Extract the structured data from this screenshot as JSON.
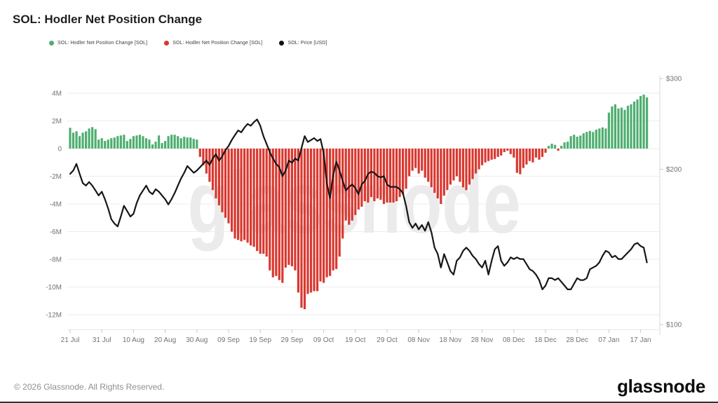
{
  "header": {
    "title": "SOL: Hodler Net Position Change"
  },
  "legend": [
    {
      "label": "SOL: Hodler Net Position Change [SOL]",
      "color": "#4fae70"
    },
    {
      "label": "SOL: Hodler Net Position Change [SOL]",
      "color": "#d93830"
    },
    {
      "label": "SOL: Price [USD]",
      "color": "#111111"
    }
  ],
  "watermark": "glassnode",
  "footer": {
    "copyright": "© 2026 Glassnode. All Rights Reserved.",
    "logo": "glassnode"
  },
  "chart_data": {
    "type": "bar+line",
    "title": "SOL: Hodler Net Position Change",
    "date_range": {
      "start": "21 Jul",
      "end": "19 Jan"
    },
    "x_ticks": {
      "labels": [
        "21 Jul",
        "31 Jul",
        "10 Aug",
        "20 Aug",
        "30 Aug",
        "09 Sep",
        "19 Sep",
        "29 Sep",
        "09 Oct",
        "19 Oct",
        "29 Oct",
        "08 Nov",
        "18 Nov",
        "28 Nov",
        "08 Dec",
        "18 Dec",
        "28 Dec",
        "07 Jan",
        "17 Jan"
      ],
      "day_indices": [
        0,
        10,
        20,
        30,
        40,
        50,
        60,
        70,
        80,
        90,
        100,
        110,
        120,
        130,
        140,
        150,
        160,
        170,
        180
      ]
    },
    "left_axis": {
      "unit": "SOL (millions)",
      "tick_labels": [
        "4M",
        "2M",
        "0",
        "-2M",
        "-4M",
        "-6M",
        "-8M",
        "-10M",
        "-12M"
      ],
      "tick_values": [
        4,
        2,
        0,
        -2,
        -4,
        -6,
        -8,
        -10,
        -12
      ],
      "range": [
        -13,
        5
      ]
    },
    "right_axis": {
      "unit": "USD",
      "scale": "log",
      "tick_labels": [
        "$300",
        "$200",
        "$100"
      ],
      "tick_values": [
        300,
        200,
        100
      ],
      "range": [
        100,
        300
      ]
    },
    "grid": true,
    "legend_position": "top-left",
    "series": [
      {
        "name": "SOL: Hodler Net Position Change [SOL]",
        "type": "bar",
        "axis": "left",
        "unit": "M SOL/day",
        "positive_color": "#4fae70",
        "negative_color": "#d93830",
        "values": [
          1.5,
          1.15,
          1.25,
          0.9,
          1.15,
          1.25,
          1.45,
          1.55,
          1.4,
          0.65,
          0.75,
          0.55,
          0.65,
          0.75,
          0.8,
          0.9,
          0.95,
          1.0,
          0.55,
          0.7,
          0.9,
          0.95,
          1.0,
          0.9,
          0.75,
          0.65,
          0.3,
          0.5,
          0.95,
          0.4,
          0.55,
          0.9,
          1.0,
          1.0,
          0.9,
          0.75,
          0.85,
          0.8,
          0.8,
          0.7,
          0.65,
          -0.6,
          -1.2,
          -1.8,
          -2.4,
          -3.0,
          -3.6,
          -4.1,
          -4.6,
          -5.0,
          -5.4,
          -6.0,
          -6.5,
          -6.6,
          -6.7,
          -6.6,
          -6.8,
          -7.0,
          -7.1,
          -7.4,
          -7.6,
          -7.6,
          -7.8,
          -8.8,
          -9.3,
          -9.2,
          -9.5,
          -9.7,
          -8.6,
          -8.4,
          -8.5,
          -8.8,
          -10.4,
          -11.5,
          -11.6,
          -10.5,
          -10.4,
          -10.3,
          -10.3,
          -9.6,
          -9.7,
          -9.3,
          -9.2,
          -8.8,
          -8.7,
          -7.8,
          -6.5,
          -5.2,
          -5.5,
          -5.2,
          -4.8,
          -4.4,
          -4.2,
          -3.8,
          -3.9,
          -3.5,
          -3.8,
          -3.6,
          -3.7,
          -4.0,
          -3.9,
          -3.9,
          -3.9,
          -3.8,
          -3.5,
          -3.3,
          -2.9,
          -2.0,
          -1.6,
          -1.4,
          -1.8,
          -1.6,
          -2.1,
          -2.4,
          -2.8,
          -3.2,
          -3.6,
          -4.0,
          -3.4,
          -3.0,
          -2.6,
          -2.3,
          -2.0,
          -2.4,
          -2.8,
          -3.0,
          -2.6,
          -2.2,
          -1.8,
          -1.5,
          -1.2,
          -1.0,
          -0.9,
          -0.8,
          -0.75,
          -0.6,
          -0.5,
          -0.25,
          -0.15,
          -0.4,
          -0.65,
          -1.75,
          -1.85,
          -1.4,
          -1.15,
          -0.9,
          -1.0,
          -0.65,
          -0.8,
          -0.6,
          -0.3,
          0.2,
          0.35,
          0.27,
          -0.15,
          0.2,
          0.45,
          0.5,
          0.9,
          1.0,
          0.86,
          0.94,
          1.1,
          1.2,
          1.28,
          1.2,
          1.37,
          1.45,
          1.53,
          1.45,
          2.6,
          3.05,
          3.2,
          2.9,
          2.96,
          2.8,
          3.1,
          3.2,
          3.4,
          3.55,
          3.8,
          3.9,
          3.7
        ]
      },
      {
        "name": "SOL: Price [USD]",
        "type": "line",
        "axis": "right",
        "unit": "USD",
        "color": "#161616",
        "values": [
          196,
          199,
          205,
          196,
          188,
          186,
          189,
          186,
          182,
          178,
          181,
          175,
          168,
          160,
          157,
          155,
          162,
          170,
          166,
          162,
          164,
          172,
          178,
          182,
          186,
          181,
          179,
          183,
          181,
          178,
          175,
          171,
          175,
          180,
          186,
          192,
          197,
          203,
          200,
          197,
          199,
          202,
          205,
          208,
          204,
          210,
          214,
          208,
          212,
          218,
          222,
          228,
          233,
          238,
          236,
          241,
          245,
          243,
          247,
          250,
          243,
          232,
          224,
          216,
          210,
          205,
          202,
          194,
          199,
          208,
          206,
          210,
          208,
          220,
          232,
          226,
          228,
          230,
          227,
          229,
          215,
          188,
          176,
          195,
          207,
          199,
          190,
          182,
          185,
          187,
          184,
          179,
          187,
          190,
          196,
          198,
          197,
          194,
          193,
          194,
          187,
          185,
          185,
          185,
          183,
          180,
          170,
          158,
          154,
          157,
          153,
          156,
          152,
          158,
          151,
          141,
          137,
          129,
          137,
          132,
          127,
          125,
          133,
          135,
          139,
          141,
          139,
          136,
          134,
          131,
          129,
          133,
          125,
          133,
          140,
          142,
          133,
          130,
          132,
          135,
          134,
          135,
          134,
          134,
          131,
          128,
          127,
          125,
          122,
          117,
          119,
          123,
          123,
          122,
          123,
          121,
          119,
          117,
          117,
          120,
          123,
          122,
          122,
          123,
          128,
          129,
          130,
          132,
          136,
          139,
          138,
          135,
          136,
          134,
          134,
          136,
          138,
          140,
          143,
          144,
          142,
          141,
          132
        ]
      }
    ]
  }
}
